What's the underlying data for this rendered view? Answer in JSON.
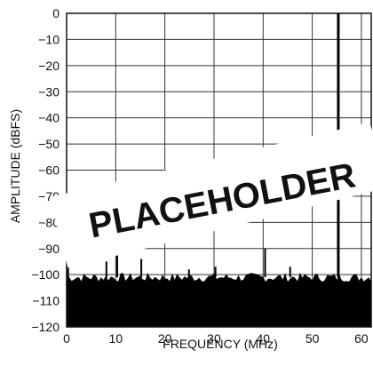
{
  "chart_data": {
    "type": "bar",
    "xlabel": "FREQUENCY (MHz)",
    "ylabel": "AMPLITUDE (dBFS)",
    "xlim": [
      0,
      62
    ],
    "ylim": [
      -120,
      0
    ],
    "x_ticks": [
      "0",
      "10",
      "20",
      "30",
      "40",
      "50",
      "60"
    ],
    "y_ticks": [
      "0",
      "−10",
      "−20",
      "−30",
      "−40",
      "−50",
      "−60",
      "−70",
      "−80",
      "−90",
      "−100",
      "−110",
      "−120"
    ],
    "grid": true,
    "noise_floor_dbfs": -101,
    "spurs": [
      {
        "x": 0.3,
        "y": -96
      },
      {
        "x": 8.1,
        "y": -95
      },
      {
        "x": 10.3,
        "y": -92
      },
      {
        "x": 15.2,
        "y": -94
      },
      {
        "x": 24.9,
        "y": -98
      },
      {
        "x": 30.3,
        "y": -97
      },
      {
        "x": 40.4,
        "y": -90
      },
      {
        "x": 45.5,
        "y": -97
      }
    ],
    "fundamental": {
      "x": 55.3,
      "y": 0
    },
    "watermark": "PLACEHOLDER"
  }
}
